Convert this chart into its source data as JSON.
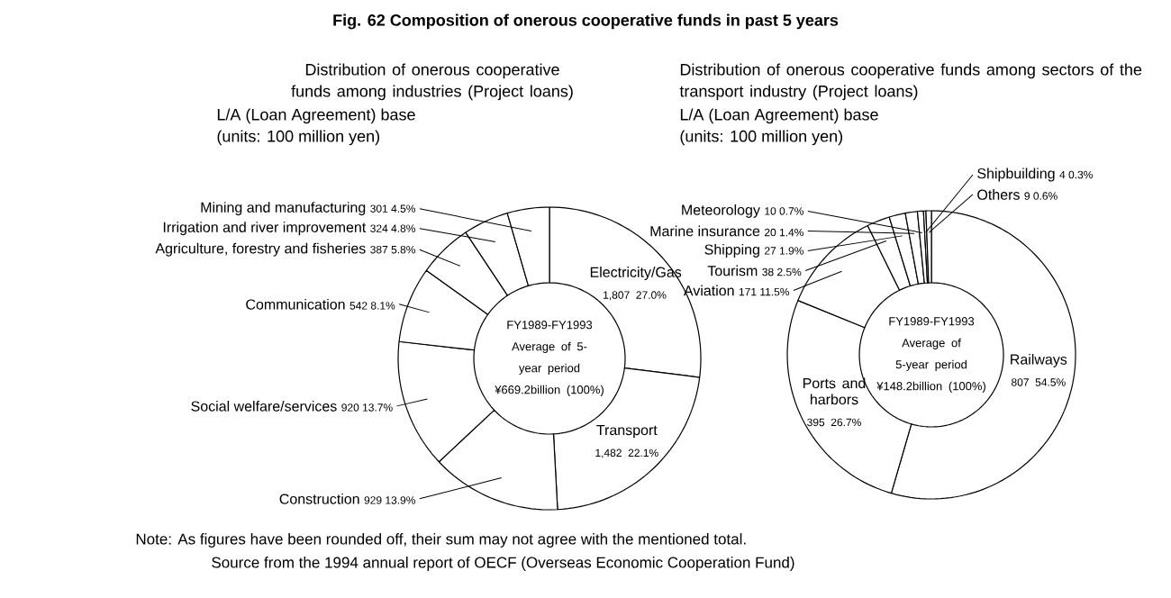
{
  "chart_data": [
    {
      "type": "donut",
      "title": "Distribution of onerous cooperative funds among industries (Project loans)",
      "subtitle": "L/A (Loan Agreement) base",
      "categories": [
        "Electricity/Gas",
        "Transport",
        "Construction",
        "Social welfare/services",
        "Communication",
        "Agriculture, forestry and fisheries",
        "Irrigation and river improvement",
        "Mining and manufacturing"
      ],
      "values": [
        1807,
        1482,
        929,
        920,
        542,
        387,
        324,
        301
      ],
      "value_labels": [
        "1,807 27.0%",
        "1,482 22.1%",
        "929 13.9%",
        "920 13.7%",
        "542 8.1%",
        "387 5.8%",
        "324 4.8%",
        "301 4.5%"
      ],
      "colors": [
        "#ffffff",
        "#ffffff",
        "#ffffff",
        "#ffffff",
        "#ffffff",
        "#ffffff",
        "#ffffff",
        "#ffffff"
      ],
      "annotations": [
        "(units: 100 million yen)",
        "FY1989-FY1993 Average of 5-year period ¥669.2billion (100%)",
        "Fig. 62 Composition of onerous cooperative funds in past 5 years",
        "Note: As figures have been rounded off, their sum may not agree with the mentioned total.",
        "Source from the 1994 annual report of OECF (Overseas Economic Cooperation Fund)"
      ]
    },
    {
      "type": "donut",
      "title": "Distribution of onerous cooperative funds among sectors of the transport industry (Project loans)",
      "subtitle": "L/A (Loan Agreement) base",
      "categories": [
        "Railways",
        "Ports and harbors",
        "Aviation",
        "Tourism",
        "Shipping",
        "Marine insurance",
        "Meteorology",
        "Shipbuilding",
        "Others"
      ],
      "values": [
        807,
        395,
        171,
        38,
        27,
        20,
        10,
        4,
        9
      ],
      "value_labels": [
        "807 54.5%",
        "395 26.7%",
        "171 11.5%",
        "38 2.5%",
        "27 1.9%",
        "20 1.4%",
        "10 0.7%",
        "4 0.3%",
        "9 0.6%"
      ],
      "colors": [
        "#ffffff",
        "#ffffff",
        "#ffffff",
        "#ffffff",
        "#ffffff",
        "#ffffff",
        "#ffffff",
        "#ffffff",
        "#ffffff"
      ],
      "annotations": [
        "(units: 100 million yen)",
        "FY1989-FY1993 Average of 5-year period ¥148.2billion (100%)"
      ]
    }
  ]
}
